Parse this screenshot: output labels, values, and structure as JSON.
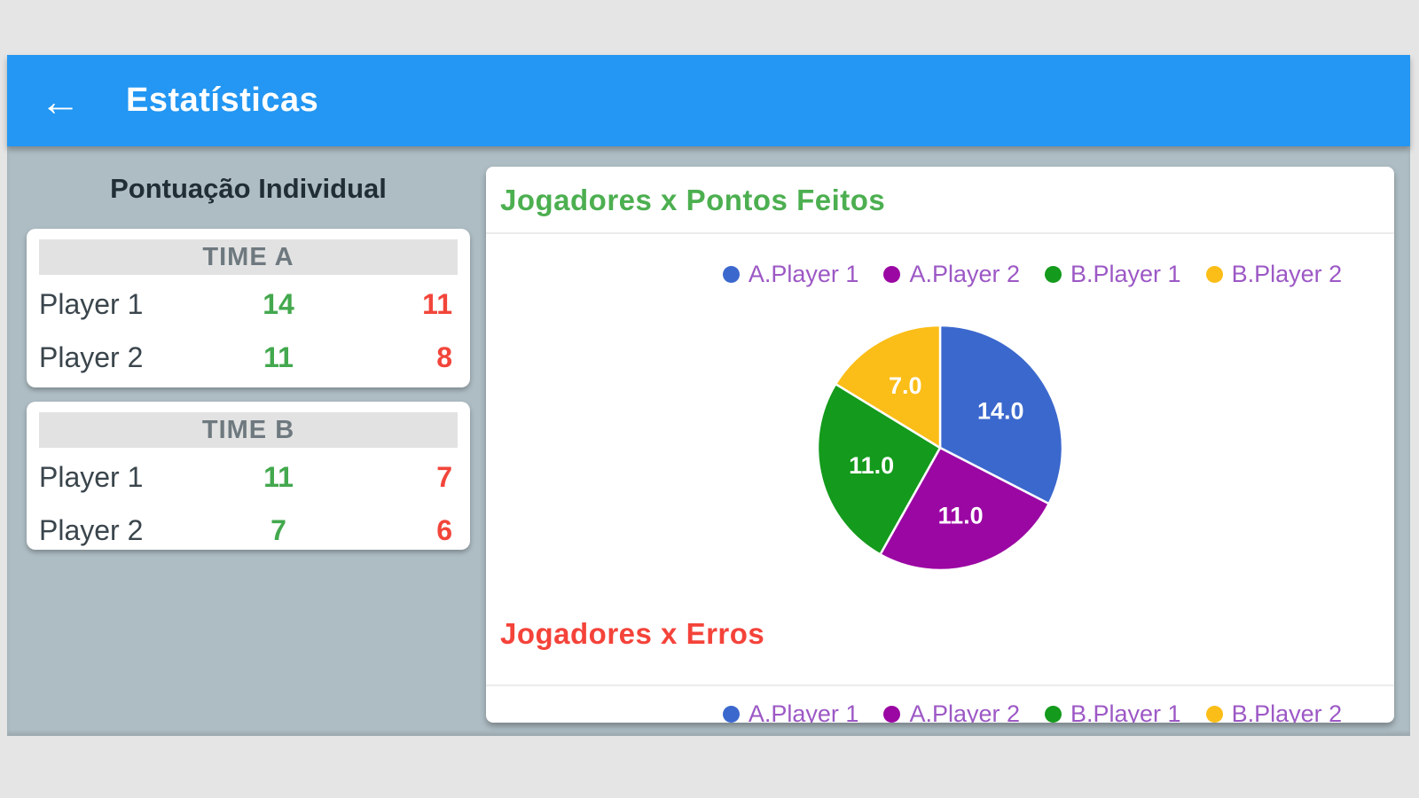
{
  "icons": {
    "back_arrow": "←"
  },
  "app_bar": {
    "title": "Estatísticas",
    "color": "#2397F3"
  },
  "left_panel": {
    "title": "Pontuação Individual",
    "points_color": "#43A84E",
    "errors_color": "#F2453A",
    "teams": [
      {
        "name": "TIME A",
        "rows": [
          {
            "player": "Player 1",
            "points": "14",
            "errors": "11"
          },
          {
            "player": "Player 2",
            "points": "11",
            "errors": "8"
          }
        ]
      },
      {
        "name": "TIME B",
        "rows": [
          {
            "player": "Player 1",
            "points": "11",
            "errors": "7"
          },
          {
            "player": "Player 2",
            "points": "7",
            "errors": "6"
          }
        ]
      }
    ]
  },
  "chart_data": [
    {
      "type": "pie",
      "title": "Jogadores x Pontos Feitos",
      "title_color": "#4CAF50",
      "categories": [
        "A.Player 1",
        "A.Player 2",
        "B.Player 1",
        "B.Player 2"
      ],
      "values": [
        14.0,
        11.0,
        11.0,
        7.0
      ],
      "slice_labels": [
        "14.0",
        "11.0",
        "11.0",
        "7.0"
      ],
      "colors": [
        "#3B68CD",
        "#9B07A3",
        "#149A1C",
        "#FBBD17"
      ],
      "legend_position": "top",
      "legend_text_color": "#9C58C5",
      "start_angle_deg": 0,
      "direction": "clockwise"
    },
    {
      "type": "pie",
      "title": "Jogadores x Erros",
      "title_color": "#F4433A",
      "categories": [
        "A.Player 1",
        "A.Player 2",
        "B.Player 1",
        "B.Player 2"
      ],
      "colors": [
        "#3B68CD",
        "#9B07A3",
        "#149A1C",
        "#FBBD17"
      ],
      "legend_position": "top",
      "legend_text_color": "#9C58C5",
      "clipped_below_legend": true
    }
  ]
}
